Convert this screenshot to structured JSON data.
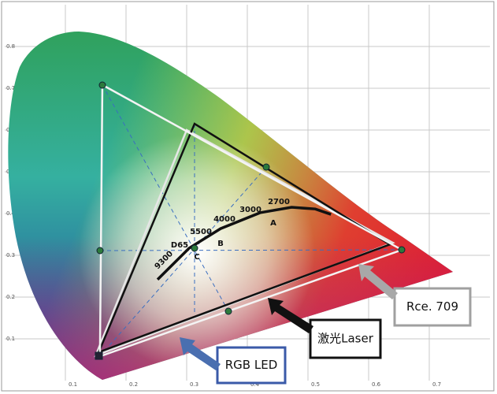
{
  "chart_data": {
    "type": "chromaticity",
    "xlim": [
      0,
      0.8
    ],
    "ylim": [
      0,
      0.9
    ],
    "xticks": [
      0.1,
      0.2,
      0.3,
      0.4,
      0.5,
      0.6,
      0.7
    ],
    "yticks": [
      0.1,
      0.2,
      0.3,
      0.4,
      0.5,
      0.6,
      0.7,
      0.8
    ],
    "grid": true,
    "series": [
      {
        "name": "Rce. 709",
        "color": "#e6e6e6",
        "x": [
          0.64,
          0.3,
          0.15
        ],
        "values": [
          0.33,
          0.6,
          0.06
        ]
      },
      {
        "name": "激光Laser",
        "color": "#111111",
        "x": [
          0.635,
          0.313,
          0.155
        ],
        "values": [
          0.326,
          0.615,
          0.068
        ]
      },
      {
        "name": "RGB LED",
        "color": "#f4f4f4",
        "x": [
          0.655,
          0.161,
          0.157
        ],
        "values": [
          0.313,
          0.708,
          0.058
        ]
      }
    ],
    "planckian": {
      "color": "#111111",
      "x": [
        0.252,
        0.304,
        0.356,
        0.421,
        0.473,
        0.512,
        0.538
      ],
      "values": [
        0.242,
        0.317,
        0.364,
        0.402,
        0.415,
        0.411,
        0.398
      ]
    },
    "annotations": [
      "9300",
      "D65",
      "5500",
      "4000",
      "3000",
      "2700",
      "A",
      "B",
      "C"
    ]
  }
}
